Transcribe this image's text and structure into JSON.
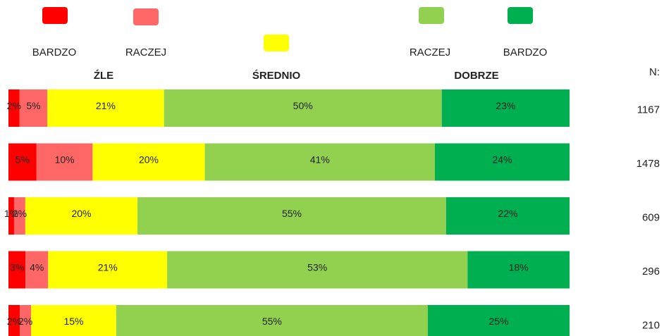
{
  "chart_data": {
    "type": "bar",
    "orientation": "horizontal",
    "stacked": "percent",
    "series": [
      {
        "name": "BARDZO",
        "color": "#ff0000",
        "values": [
          2,
          5,
          1,
          3,
          2
        ],
        "value_labels": [
          "2%",
          "5%",
          "1%",
          "3%",
          "2%"
        ]
      },
      {
        "name": "RACZEJ",
        "color": "#ff6666",
        "values": [
          5,
          10,
          2,
          4,
          2
        ],
        "value_labels": [
          "5%",
          "10%",
          "2%",
          "4%",
          "2%"
        ]
      },
      {
        "color": "#ffff00",
        "values": [
          21,
          20,
          20,
          21,
          15
        ],
        "value_labels": [
          "21%",
          "20%",
          "20%",
          "21%",
          "15%"
        ]
      },
      {
        "name": "RACZEJ",
        "color": "#92d050",
        "values": [
          50,
          41,
          55,
          53,
          55
        ],
        "value_labels": [
          "50%",
          "41%",
          "55%",
          "53%",
          "55%"
        ]
      },
      {
        "name": "BARDZO",
        "color": "#00b050",
        "values": [
          23,
          24,
          22,
          18,
          25
        ],
        "value_labels": [
          "23%",
          "24%",
          "22%",
          "18%",
          "25%"
        ]
      }
    ],
    "group_labels": [
      "ŹLE",
      "ŚREDNIO",
      "DOBRZE"
    ],
    "n_label": "N:",
    "n": [
      1167,
      1478,
      609,
      296,
      210
    ]
  }
}
